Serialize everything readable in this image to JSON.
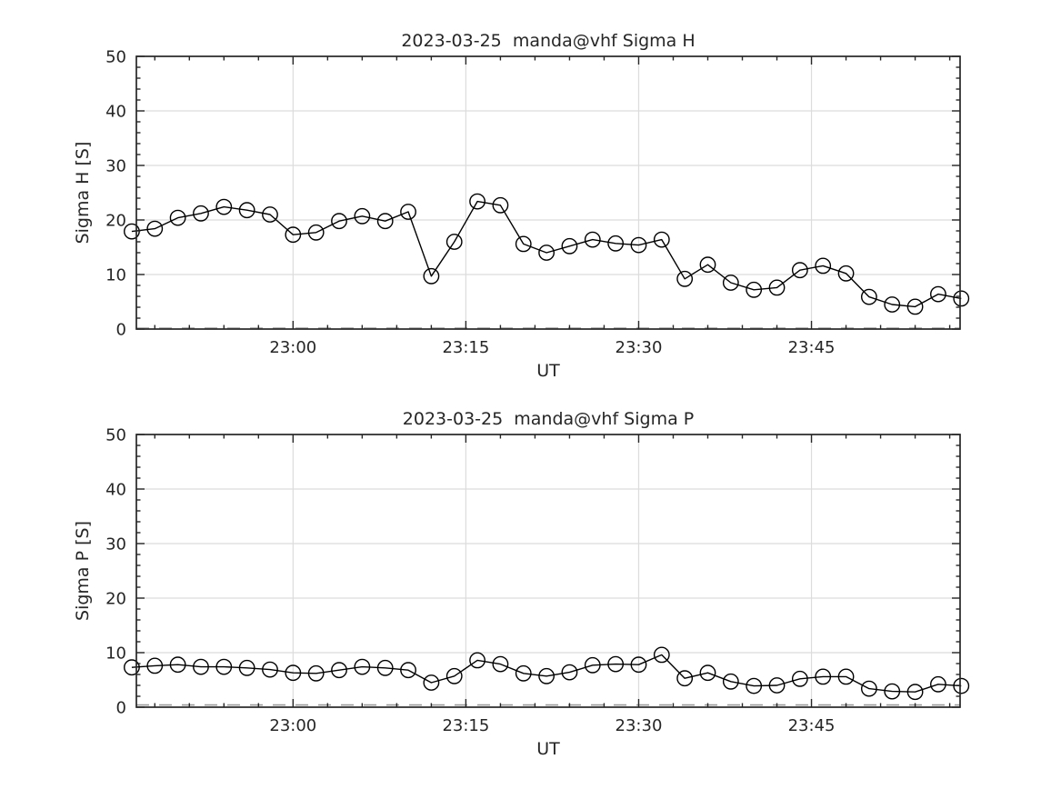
{
  "figure": {
    "background": "#ffffff",
    "text_color": "#262626",
    "grid_color": "#dcdcdc",
    "line_color": "#000000",
    "marker": "open-circle"
  },
  "chart_data": [
    {
      "type": "line",
      "title": "2023-03-25  manda@vhf Sigma H",
      "xlabel": "UT",
      "ylabel": "Sigma H [S]",
      "ylim": [
        0,
        50
      ],
      "yticks": [
        0,
        10,
        20,
        30,
        40,
        50
      ],
      "y_minor_step": 2,
      "xlim_minutes_from_2300": [
        -13.6,
        57.9
      ],
      "xticks": [
        {
          "minutes": 0,
          "label": "23:00"
        },
        {
          "minutes": 15,
          "label": "23:15"
        },
        {
          "minutes": 30,
          "label": "23:30"
        },
        {
          "minutes": 45,
          "label": "23:45"
        }
      ],
      "x_minor_step_minutes": 3,
      "grid": true,
      "legend": "none",
      "baseline_dash_value": 0.15,
      "series": [
        {
          "name": "Sigma H",
          "start_time": "22:46",
          "end_time": "23:58",
          "step_minutes": 2,
          "x_minutes_from_2300": [
            -14,
            -12,
            -10,
            -8,
            -6,
            -4,
            -2,
            0,
            2,
            4,
            6,
            8,
            10,
            12,
            14,
            16,
            18,
            20,
            22,
            24,
            26,
            28,
            30,
            32,
            34,
            36,
            38,
            40,
            42,
            44,
            46,
            48,
            50,
            52,
            54,
            56,
            58
          ],
          "values": [
            17.9,
            18.4,
            20.4,
            21.2,
            22.4,
            21.8,
            21.0,
            17.3,
            17.7,
            19.8,
            20.7,
            19.8,
            21.5,
            9.7,
            16.0,
            23.4,
            22.7,
            15.6,
            14.0,
            15.2,
            16.4,
            15.7,
            15.4,
            16.4,
            9.2,
            11.8,
            8.5,
            7.2,
            7.6,
            10.8,
            11.6,
            10.2,
            5.9,
            4.5,
            4.1,
            6.4,
            5.6
          ]
        }
      ]
    },
    {
      "type": "line",
      "title": "2023-03-25  manda@vhf Sigma P",
      "xlabel": "UT",
      "ylabel": "Sigma P [S]",
      "ylim": [
        0,
        50
      ],
      "yticks": [
        0,
        10,
        20,
        30,
        40,
        50
      ],
      "y_minor_step": 2,
      "xlim_minutes_from_2300": [
        -13.6,
        57.9
      ],
      "xticks": [
        {
          "minutes": 0,
          "label": "23:00"
        },
        {
          "minutes": 15,
          "label": "23:15"
        },
        {
          "minutes": 30,
          "label": "23:30"
        },
        {
          "minutes": 45,
          "label": "23:45"
        }
      ],
      "x_minor_step_minutes": 3,
      "grid": true,
      "legend": "none",
      "baseline_dash_value": 0.4,
      "series": [
        {
          "name": "Sigma P",
          "start_time": "22:46",
          "end_time": "23:58",
          "step_minutes": 2,
          "x_minutes_from_2300": [
            -14,
            -12,
            -10,
            -8,
            -6,
            -4,
            -2,
            0,
            2,
            4,
            6,
            8,
            10,
            12,
            14,
            16,
            18,
            20,
            22,
            24,
            26,
            28,
            30,
            32,
            34,
            36,
            38,
            40,
            42,
            44,
            46,
            48,
            50,
            52,
            54,
            56,
            58
          ],
          "values": [
            7.3,
            7.6,
            7.8,
            7.4,
            7.4,
            7.2,
            6.9,
            6.3,
            6.2,
            6.8,
            7.4,
            7.2,
            6.8,
            4.5,
            5.7,
            8.6,
            7.9,
            6.2,
            5.7,
            6.4,
            7.7,
            7.9,
            7.8,
            9.6,
            5.3,
            6.3,
            4.7,
            3.9,
            4.0,
            5.2,
            5.6,
            5.6,
            3.4,
            2.9,
            2.8,
            4.2,
            3.9
          ]
        }
      ]
    }
  ]
}
